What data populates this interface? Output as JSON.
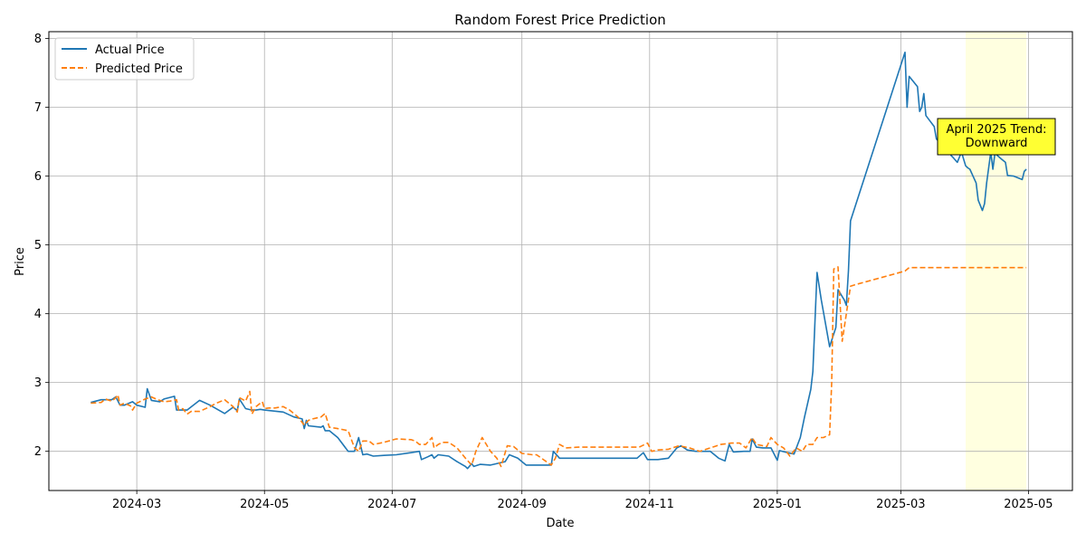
{
  "chart_data": {
    "type": "line",
    "title": "Random Forest Price Prediction",
    "xlabel": "Date",
    "ylabel": "Price",
    "xlim": [
      "2024-01-19",
      "2025-05-22"
    ],
    "ylim": [
      1.43,
      8.1
    ],
    "x_ticks": [
      "2024-03-01",
      "2024-05-01",
      "2024-07-01",
      "2024-09-01",
      "2024-11-01",
      "2025-01-01",
      "2025-03-01",
      "2025-05-01"
    ],
    "x_tick_labels": [
      "2024-03",
      "2024-05",
      "2024-07",
      "2024-09",
      "2024-11",
      "2025-01",
      "2025-03",
      "2025-05"
    ],
    "y_ticks": [
      2,
      3,
      4,
      5,
      6,
      7,
      8
    ],
    "grid": true,
    "legend_position": "upper-left",
    "highlight_span": {
      "from": "2025-04-01",
      "to": "2025-04-30",
      "color": "#ffffe0"
    },
    "annotation": {
      "text_lines": [
        "April 2025 Trend:",
        "Downward"
      ],
      "date": "2025-04-15",
      "price": 6.58,
      "background": "#ffff33"
    },
    "series": [
      {
        "name": "Actual Price",
        "color": "#1f77b4",
        "style": "solid",
        "points": [
          [
            "2024-02-08",
            2.71
          ],
          [
            "2024-02-13",
            2.75
          ],
          [
            "2024-02-18",
            2.75
          ],
          [
            "2024-02-20",
            2.79
          ],
          [
            "2024-02-22",
            2.67
          ],
          [
            "2024-02-24",
            2.67
          ],
          [
            "2024-02-28",
            2.72
          ],
          [
            "2024-03-01",
            2.67
          ],
          [
            "2024-03-05",
            2.64
          ],
          [
            "2024-03-06",
            2.91
          ],
          [
            "2024-03-08",
            2.74
          ],
          [
            "2024-03-12",
            2.72
          ],
          [
            "2024-03-14",
            2.76
          ],
          [
            "2024-03-19",
            2.8
          ],
          [
            "2024-03-20",
            2.6
          ],
          [
            "2024-03-25",
            2.6
          ],
          [
            "2024-03-31",
            2.74
          ],
          [
            "2024-04-05",
            2.67
          ],
          [
            "2024-04-12",
            2.55
          ],
          [
            "2024-04-16",
            2.64
          ],
          [
            "2024-04-18",
            2.59
          ],
          [
            "2024-04-19",
            2.76
          ],
          [
            "2024-04-22",
            2.62
          ],
          [
            "2024-04-25",
            2.6
          ],
          [
            "2024-04-27",
            2.6
          ],
          [
            "2024-04-29",
            2.61
          ],
          [
            "2024-05-01",
            2.6
          ],
          [
            "2024-05-10",
            2.57
          ],
          [
            "2024-05-15",
            2.5
          ],
          [
            "2024-05-19",
            2.47
          ],
          [
            "2024-05-20",
            2.33
          ],
          [
            "2024-05-21",
            2.45
          ],
          [
            "2024-05-22",
            2.37
          ],
          [
            "2024-05-28",
            2.35
          ],
          [
            "2024-05-29",
            2.37
          ],
          [
            "2024-05-30",
            2.3
          ],
          [
            "2024-06-01",
            2.3
          ],
          [
            "2024-06-05",
            2.2
          ],
          [
            "2024-06-10",
            2.0
          ],
          [
            "2024-06-13",
            2.0
          ],
          [
            "2024-06-15",
            2.2
          ],
          [
            "2024-06-17",
            1.95
          ],
          [
            "2024-06-19",
            1.96
          ],
          [
            "2024-06-22",
            1.93
          ],
          [
            "2024-06-27",
            1.94
          ],
          [
            "2024-07-03",
            1.95
          ],
          [
            "2024-07-10",
            1.98
          ],
          [
            "2024-07-14",
            2.0
          ],
          [
            "2024-07-15",
            1.88
          ],
          [
            "2024-07-18",
            1.92
          ],
          [
            "2024-07-20",
            1.95
          ],
          [
            "2024-07-21",
            1.9
          ],
          [
            "2024-07-23",
            1.95
          ],
          [
            "2024-07-28",
            1.93
          ],
          [
            "2024-08-01",
            1.85
          ],
          [
            "2024-08-05",
            1.78
          ],
          [
            "2024-08-06",
            1.75
          ],
          [
            "2024-08-08",
            1.82
          ],
          [
            "2024-08-09",
            1.78
          ],
          [
            "2024-08-12",
            1.81
          ],
          [
            "2024-08-17",
            1.8
          ],
          [
            "2024-08-24",
            1.85
          ],
          [
            "2024-08-26",
            1.95
          ],
          [
            "2024-08-30",
            1.9
          ],
          [
            "2024-09-03",
            1.8
          ],
          [
            "2024-09-08",
            1.8
          ],
          [
            "2024-09-15",
            1.8
          ],
          [
            "2024-09-16",
            2.0
          ],
          [
            "2024-09-19",
            1.9
          ],
          [
            "2024-09-28",
            1.9
          ],
          [
            "2024-10-10",
            1.9
          ],
          [
            "2024-10-20",
            1.9
          ],
          [
            "2024-10-26",
            1.9
          ],
          [
            "2024-10-29",
            1.98
          ],
          [
            "2024-10-31",
            1.88
          ],
          [
            "2024-11-05",
            1.88
          ],
          [
            "2024-11-10",
            1.9
          ],
          [
            "2024-11-14",
            2.05
          ],
          [
            "2024-11-16",
            2.08
          ],
          [
            "2024-11-19",
            2.02
          ],
          [
            "2024-11-23",
            2.0
          ],
          [
            "2024-11-25",
            2.0
          ],
          [
            "2024-11-29",
            2.0
          ],
          [
            "2024-11-30",
            2.0
          ],
          [
            "2024-12-04",
            1.9
          ],
          [
            "2024-12-07",
            1.86
          ],
          [
            "2024-12-09",
            2.1
          ],
          [
            "2024-12-11",
            1.99
          ],
          [
            "2024-12-16",
            2.0
          ],
          [
            "2024-12-18",
            2.0
          ],
          [
            "2024-12-19",
            2.0
          ],
          [
            "2024-12-20",
            2.18
          ],
          [
            "2024-12-22",
            2.06
          ],
          [
            "2024-12-25",
            2.05
          ],
          [
            "2024-12-29",
            2.05
          ],
          [
            "2025-01-01",
            1.87
          ],
          [
            "2025-01-02",
            2.01
          ],
          [
            "2025-01-06",
            1.98
          ],
          [
            "2025-01-09",
            1.96
          ],
          [
            "2025-01-12",
            2.2
          ],
          [
            "2025-01-14",
            2.5
          ],
          [
            "2025-01-17",
            2.9
          ],
          [
            "2025-01-18",
            3.16
          ],
          [
            "2025-01-20",
            4.6
          ],
          [
            "2025-01-22",
            4.2
          ],
          [
            "2025-01-26",
            3.52
          ],
          [
            "2025-01-29",
            3.8
          ],
          [
            "2025-01-30",
            4.35
          ],
          [
            "2025-02-02",
            4.2
          ],
          [
            "2025-02-03",
            4.12
          ],
          [
            "2025-02-04",
            4.62
          ],
          [
            "2025-02-05",
            5.35
          ],
          [
            "2025-03-03",
            7.8
          ],
          [
            "2025-03-04",
            7.0
          ],
          [
            "2025-03-05",
            7.45
          ],
          [
            "2025-03-09",
            7.3
          ],
          [
            "2025-03-10",
            6.94
          ],
          [
            "2025-03-11",
            7.0
          ],
          [
            "2025-03-12",
            7.2
          ],
          [
            "2025-03-13",
            6.88
          ],
          [
            "2025-03-15",
            6.8
          ],
          [
            "2025-03-17",
            6.72
          ],
          [
            "2025-03-18",
            6.54
          ],
          [
            "2025-03-19",
            6.51
          ],
          [
            "2025-03-21",
            6.55
          ],
          [
            "2025-03-23",
            6.5
          ],
          [
            "2025-03-25",
            6.3
          ],
          [
            "2025-03-26",
            6.27
          ],
          [
            "2025-03-28",
            6.2
          ],
          [
            "2025-03-30",
            6.35
          ],
          [
            "2025-04-01",
            6.15
          ],
          [
            "2025-04-02",
            6.12
          ],
          [
            "2025-04-03",
            6.1
          ],
          [
            "2025-04-06",
            5.9
          ],
          [
            "2025-04-07",
            5.65
          ],
          [
            "2025-04-09",
            5.5
          ],
          [
            "2025-04-10",
            5.6
          ],
          [
            "2025-04-11",
            5.9
          ],
          [
            "2025-04-13",
            6.35
          ],
          [
            "2025-04-14",
            6.1
          ],
          [
            "2025-04-15",
            6.33
          ],
          [
            "2025-04-18",
            6.25
          ],
          [
            "2025-04-20",
            6.2
          ],
          [
            "2025-04-21",
            6.01
          ],
          [
            "2025-04-24",
            6.0
          ],
          [
            "2025-04-28",
            5.95
          ],
          [
            "2025-04-29",
            6.07
          ],
          [
            "2025-04-30",
            6.1
          ]
        ]
      },
      {
        "name": "Predicted Price",
        "color": "#ff7f0e",
        "style": "dashed",
        "points": [
          [
            "2024-02-08",
            2.7
          ],
          [
            "2024-02-13",
            2.71
          ],
          [
            "2024-02-15",
            2.76
          ],
          [
            "2024-02-18",
            2.73
          ],
          [
            "2024-02-20",
            2.78
          ],
          [
            "2024-02-21",
            2.82
          ],
          [
            "2024-02-22",
            2.67
          ],
          [
            "2024-02-24",
            2.7
          ],
          [
            "2024-02-27",
            2.66
          ],
          [
            "2024-02-28",
            2.6
          ],
          [
            "2024-03-01",
            2.7
          ],
          [
            "2024-03-05",
            2.76
          ],
          [
            "2024-03-08",
            2.79
          ],
          [
            "2024-03-11",
            2.75
          ],
          [
            "2024-03-14",
            2.72
          ],
          [
            "2024-03-17",
            2.73
          ],
          [
            "2024-03-20",
            2.75
          ],
          [
            "2024-03-21",
            2.6
          ],
          [
            "2024-03-23",
            2.62
          ],
          [
            "2024-03-25",
            2.54
          ],
          [
            "2024-03-27",
            2.58
          ],
          [
            "2024-03-31",
            2.58
          ],
          [
            "2024-04-05",
            2.65
          ],
          [
            "2024-04-08",
            2.7
          ],
          [
            "2024-04-12",
            2.75
          ],
          [
            "2024-04-16",
            2.65
          ],
          [
            "2024-04-18",
            2.57
          ],
          [
            "2024-04-19",
            2.78
          ],
          [
            "2024-04-22",
            2.73
          ],
          [
            "2024-04-24",
            2.87
          ],
          [
            "2024-04-25",
            2.54
          ],
          [
            "2024-04-27",
            2.65
          ],
          [
            "2024-04-29",
            2.7
          ],
          [
            "2024-04-30",
            2.72
          ],
          [
            "2024-05-01",
            2.62
          ],
          [
            "2024-05-03",
            2.63
          ],
          [
            "2024-05-06",
            2.63
          ],
          [
            "2024-05-10",
            2.65
          ],
          [
            "2024-05-13",
            2.6
          ],
          [
            "2024-05-15",
            2.55
          ],
          [
            "2024-05-17",
            2.5
          ],
          [
            "2024-05-20",
            2.38
          ],
          [
            "2024-05-22",
            2.45
          ],
          [
            "2024-05-24",
            2.47
          ],
          [
            "2024-05-28",
            2.5
          ],
          [
            "2024-05-30",
            2.55
          ],
          [
            "2024-06-01",
            2.35
          ],
          [
            "2024-06-05",
            2.33
          ],
          [
            "2024-06-10",
            2.3
          ],
          [
            "2024-06-13",
            2.05
          ],
          [
            "2024-06-15",
            2.0
          ],
          [
            "2024-06-17",
            2.15
          ],
          [
            "2024-06-20",
            2.15
          ],
          [
            "2024-06-22",
            2.1
          ],
          [
            "2024-06-27",
            2.13
          ],
          [
            "2024-07-03",
            2.18
          ],
          [
            "2024-07-10",
            2.17
          ],
          [
            "2024-07-12",
            2.15
          ],
          [
            "2024-07-14",
            2.1
          ],
          [
            "2024-07-17",
            2.1
          ],
          [
            "2024-07-20",
            2.2
          ],
          [
            "2024-07-21",
            2.05
          ],
          [
            "2024-07-23",
            2.1
          ],
          [
            "2024-07-25",
            2.13
          ],
          [
            "2024-07-28",
            2.13
          ],
          [
            "2024-08-01",
            2.05
          ],
          [
            "2024-08-05",
            1.9
          ],
          [
            "2024-08-08",
            1.8
          ],
          [
            "2024-08-10",
            2.0
          ],
          [
            "2024-08-13",
            2.2
          ],
          [
            "2024-08-17",
            2.0
          ],
          [
            "2024-08-20",
            1.9
          ],
          [
            "2024-08-22",
            1.78
          ],
          [
            "2024-08-25",
            2.08
          ],
          [
            "2024-08-28",
            2.07
          ],
          [
            "2024-09-01",
            1.97
          ],
          [
            "2024-09-06",
            1.95
          ],
          [
            "2024-09-08",
            1.95
          ],
          [
            "2024-09-15",
            1.8
          ],
          [
            "2024-09-17",
            1.9
          ],
          [
            "2024-09-19",
            2.1
          ],
          [
            "2024-09-22",
            2.05
          ],
          [
            "2024-09-28",
            2.06
          ],
          [
            "2024-10-10",
            2.06
          ],
          [
            "2024-10-20",
            2.06
          ],
          [
            "2024-10-27",
            2.06
          ],
          [
            "2024-10-31",
            2.12
          ],
          [
            "2024-11-02",
            2.0
          ],
          [
            "2024-11-05",
            2.02
          ],
          [
            "2024-11-10",
            2.03
          ],
          [
            "2024-11-15",
            2.08
          ],
          [
            "2024-11-20",
            2.05
          ],
          [
            "2024-11-25",
            2.0
          ],
          [
            "2024-11-30",
            2.05
          ],
          [
            "2024-12-05",
            2.1
          ],
          [
            "2024-12-10",
            2.12
          ],
          [
            "2024-12-14",
            2.12
          ],
          [
            "2024-12-17",
            2.05
          ],
          [
            "2024-12-20",
            2.2
          ],
          [
            "2024-12-22",
            2.1
          ],
          [
            "2024-12-27",
            2.07
          ],
          [
            "2024-12-29",
            2.2
          ],
          [
            "2025-01-01",
            2.1
          ],
          [
            "2025-01-04",
            2.05
          ],
          [
            "2025-01-07",
            1.93
          ],
          [
            "2025-01-10",
            2.05
          ],
          [
            "2025-01-13",
            2.0
          ],
          [
            "2025-01-15",
            2.1
          ],
          [
            "2025-01-18",
            2.1
          ],
          [
            "2025-01-20",
            2.2
          ],
          [
            "2025-01-23",
            2.2
          ],
          [
            "2025-01-26",
            2.24
          ],
          [
            "2025-01-27",
            3.0
          ],
          [
            "2025-01-28",
            4.65
          ],
          [
            "2025-01-30",
            4.68
          ],
          [
            "2025-02-01",
            3.6
          ],
          [
            "2025-02-02",
            3.8
          ],
          [
            "2025-02-04",
            4.2
          ],
          [
            "2025-02-05",
            4.4
          ],
          [
            "2025-02-07",
            4.42
          ],
          [
            "2025-03-03",
            4.62
          ],
          [
            "2025-03-05",
            4.67
          ],
          [
            "2025-04-30",
            4.67
          ]
        ]
      }
    ]
  }
}
